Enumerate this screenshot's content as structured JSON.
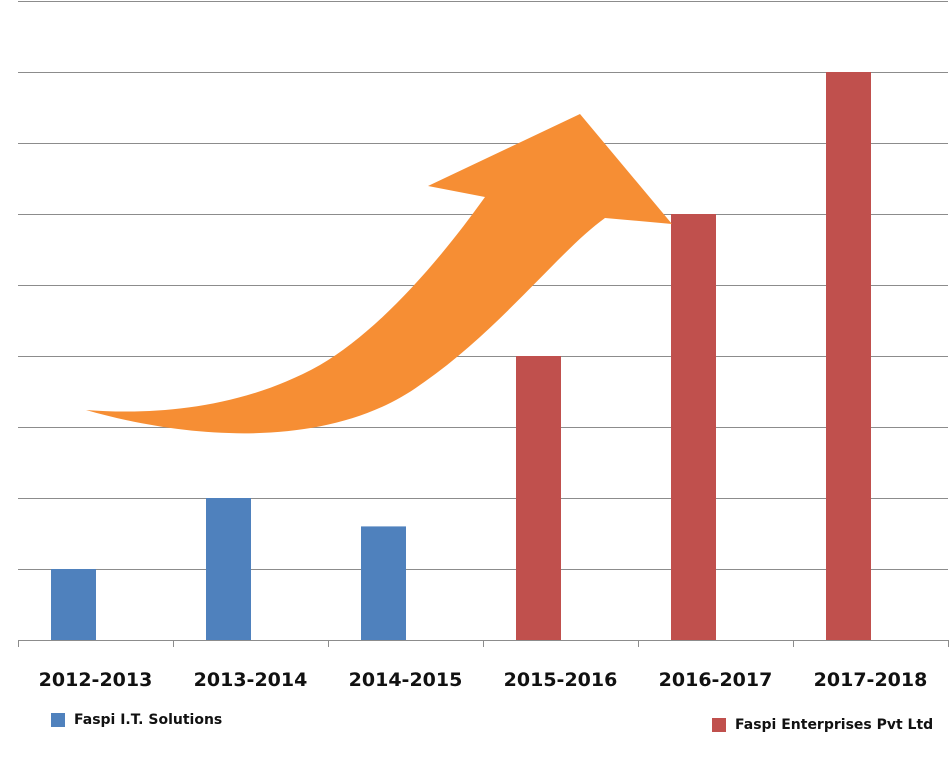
{
  "chart_data": {
    "type": "bar",
    "categories": [
      "2012-2013",
      "2013-2014",
      "2014-2015",
      "2015-2016",
      "2016-2017",
      "2017-2018"
    ],
    "series": [
      {
        "name": "Faspi I.T. Solutions",
        "color": "#4f81bd",
        "values": [
          1,
          2,
          1.6,
          null,
          null,
          null
        ]
      },
      {
        "name": "Faspi Enterprises Pvt Ltd",
        "color": "#c0504d",
        "values": [
          null,
          null,
          null,
          4,
          6,
          8
        ]
      }
    ],
    "ylim": [
      0,
      9
    ],
    "grid": true,
    "y_tick_labels_shown": false,
    "legend_placement": "bottom",
    "annotations": [
      {
        "type": "arrow",
        "meaning": "upward growth trend",
        "color": "#f68e34"
      }
    ],
    "title": "",
    "xlabel": "",
    "ylabel": ""
  }
}
